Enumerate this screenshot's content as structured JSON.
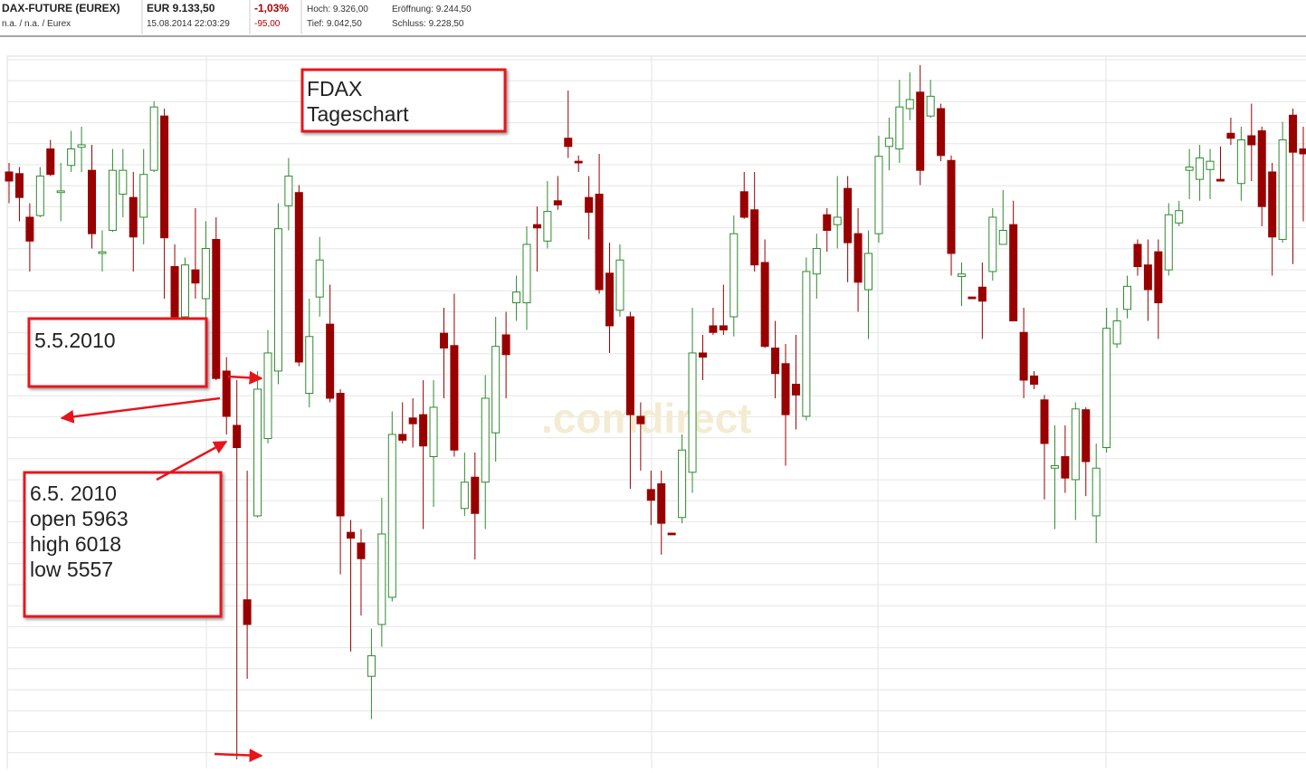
{
  "header": {
    "instrument": "DAX-FUTURE (EUREX)",
    "exchange": "n.a. / n.a. / Eurex",
    "price": "EUR 9.133,50",
    "timestamp": "15.08.2014 22:03:29",
    "change_pct": "-1,03%",
    "change_abs": "-95,00",
    "high": "Hoch: 9.326,00",
    "open": "Eröffnung: 9.244,50",
    "low": "Tief: 9.042,50",
    "close": "Schluss: 9.228,50"
  },
  "chart_data": {
    "type": "candlestick",
    "watermark": ".comdirect",
    "up_color": "#2e8b2e",
    "down_color": "#990000",
    "ylim": [
      5546,
      6414
    ],
    "annotations": [
      {
        "lines": [
          "FDAX",
          "Tageschart"
        ]
      },
      {
        "lines": [
          "5.5.2010"
        ]
      },
      {
        "lines": [
          "6.5. 2010",
          "open 5963",
          "high 6018",
          "low 5557"
        ]
      }
    ],
    "open": [
      6271,
      6269,
      6216,
      6218,
      6299,
      6246,
      6279,
      6301,
      6273,
      6172,
      6200,
      6244,
      6240,
      6216,
      6273,
      6339,
      6156,
      6095,
      6152,
      6117,
      6189,
      6029,
      5963,
      5751,
      5853,
      5947,
      6029,
      6230,
      6246,
      6002,
      6119,
      6086,
      6002,
      5833,
      5820,
      5658,
      5721,
      5754,
      5952,
      5972,
      5976,
      5925,
      6075,
      6060,
      5862,
      5900,
      5894,
      5954,
      6073,
      6112,
      6112,
      6207,
      6187,
      6236,
      6312,
      6284,
      6240,
      6244,
      6148,
      6103,
      6095,
      5974,
      5885,
      5892,
      5832,
      5851,
      5906,
      6051,
      6084,
      6084,
      6095,
      6247,
      6225,
      6161,
      6057,
      6038,
      6013,
      5974,
      6147,
      6219,
      6207,
      6251,
      6196,
      6128,
      6196,
      6302,
      6299,
      6348,
      6368,
      6339,
      6348,
      6285,
      6144,
      6119,
      6131,
      6150,
      6183,
      6207,
      6076,
      6023,
      5994,
      5911,
      5925,
      5897,
      5982,
      5853,
      5936,
      6062,
      6104,
      6183,
      6158,
      6174,
      6152,
      6209,
      6273,
      6262,
      6274,
      6262,
      6318,
      6257,
      6315,
      6321,
      6271,
      6189,
      6340,
      6299
    ],
    "high": [
      6282,
      6277,
      6233,
      6277,
      6310,
      6282,
      6321,
      6326,
      6304,
      6200,
      6299,
      6299,
      6271,
      6299,
      6357,
      6348,
      6183,
      6167,
      6227,
      6211,
      6216,
      6046,
      6018,
      5908,
      6029,
      6079,
      6233,
      6288,
      6255,
      6117,
      6192,
      6134,
      6007,
      5848,
      5837,
      5716,
      5875,
      5980,
      5991,
      5996,
      6018,
      6018,
      6106,
      6123,
      5930,
      5930,
      6024,
      6095,
      6101,
      6145,
      6205,
      6229,
      6260,
      6266,
      6370,
      6291,
      6266,
      6293,
      6185,
      6183,
      6101,
      5991,
      5908,
      5908,
      5832,
      5952,
      6106,
      6073,
      6106,
      6134,
      6218,
      6271,
      6271,
      6189,
      6090,
      6062,
      6073,
      6167,
      6196,
      6227,
      6266,
      6266,
      6227,
      6200,
      6315,
      6337,
      6383,
      6392,
      6401,
      6383,
      6354,
      6291,
      6161,
      6119,
      6161,
      6227,
      6249,
      6236,
      6106,
      6029,
      6000,
      5963,
      5963,
      5991,
      5985,
      5941,
      6106,
      6106,
      6145,
      6189,
      6189,
      6189,
      6233,
      6236,
      6299,
      6304,
      6299,
      6302,
      6337,
      6326,
      6354,
      6326,
      6282,
      6332,
      6348,
      6326
    ],
    "low": [
      6233,
      6211,
      6150,
      6216,
      6266,
      6211,
      6271,
      6271,
      6178,
      6150,
      6198,
      6216,
      6150,
      6183,
      6271,
      6117,
      6093,
      6093,
      6117,
      6090,
      6018,
      5952,
      5557,
      5655,
      5851,
      5941,
      6013,
      6200,
      6035,
      5985,
      6095,
      5991,
      5782,
      5688,
      5732,
      5606,
      5694,
      5749,
      5941,
      5936,
      5837,
      5864,
      5996,
      5925,
      5853,
      5800,
      5837,
      5919,
      5996,
      6090,
      6079,
      6150,
      6178,
      6225,
      6288,
      6271,
      6189,
      6123,
      6051,
      6095,
      5886,
      5908,
      5842,
      5806,
      5830,
      5844,
      5881,
      6018,
      6073,
      6073,
      6071,
      6214,
      6150,
      6057,
      5996,
      5914,
      5958,
      5969,
      6117,
      6174,
      6178,
      6137,
      6101,
      6068,
      6185,
      6273,
      6282,
      6334,
      6255,
      6337,
      6284,
      6145,
      6108,
      6117,
      6068,
      6139,
      6183,
      6090,
      5996,
      6007,
      5873,
      5837,
      5881,
      5848,
      5877,
      5820,
      5930,
      6057,
      6093,
      6145,
      6090,
      6068,
      6145,
      6205,
      6238,
      6236,
      6238,
      6260,
      6304,
      6236,
      6260,
      6205,
      6145,
      6185,
      6159,
      6211
    ],
    "close": [
      6260,
      6240,
      6187,
      6266,
      6268,
      6248,
      6299,
      6304,
      6196,
      6174,
      6273,
      6273,
      6192,
      6268,
      6350,
      6191,
      6095,
      6158,
      6136,
      6178,
      6020,
      5974,
      5936,
      5721,
      6007,
      6051,
      6202,
      6266,
      6040,
      6071,
      6164,
      5996,
      5853,
      5826,
      5801,
      5683,
      5831,
      5952,
      5945,
      5965,
      5938,
      5985,
      6057,
      5933,
      5894,
      5856,
      5996,
      6059,
      6049,
      6125,
      6183,
      6203,
      6223,
      6231,
      6302,
      6282,
      6222,
      6128,
      6084,
      6164,
      5976,
      5965,
      5872,
      5844,
      5830,
      5933,
      6051,
      6046,
      6076,
      6079,
      6196,
      6216,
      6158,
      6059,
      6026,
      5976,
      6000,
      6150,
      6178,
      6200,
      6216,
      6185,
      6137,
      6172,
      6290,
      6312,
      6350,
      6359,
      6273,
      6363,
      6291,
      6172,
      6147,
      6117,
      6114,
      6216,
      6200,
      6090,
      6018,
      6013,
      5941,
      5914,
      5899,
      5983,
      5919,
      5911,
      6081,
      6090,
      6132,
      6156,
      6128,
      6112,
      6219,
      6224,
      6277,
      6288,
      6284,
      6260,
      6312,
      6310,
      6304,
      6229,
      6192,
      6310,
      6295,
      6293
    ]
  }
}
